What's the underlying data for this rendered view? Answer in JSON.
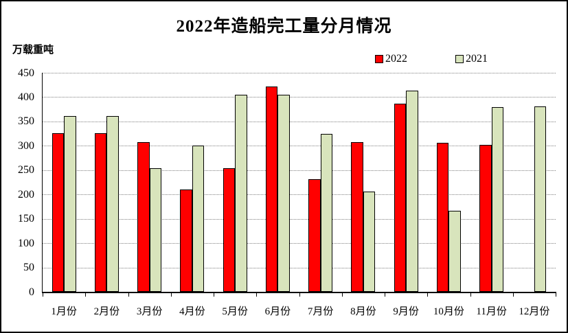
{
  "title": "2022年造船完工量分月情况",
  "y_axis_unit_label": "万载重吨",
  "legend": {
    "items": [
      {
        "label": "2022",
        "color": "#FF0000"
      },
      {
        "label": "2021",
        "color": "#D8E4BC"
      }
    ]
  },
  "colors": {
    "bar_border": "#000000",
    "gridline": "#7f7f7f",
    "axis": "#000000",
    "background": "#ffffff"
  },
  "chart_data": {
    "type": "bar",
    "title": "2022年造船完工量分月情况",
    "xlabel": "",
    "ylabel": "万载重吨",
    "categories": [
      "1月份",
      "2月份",
      "3月份",
      "4月份",
      "5月份",
      "6月份",
      "7月份",
      "8月份",
      "9月份",
      "10月份",
      "11月份",
      "12月份"
    ],
    "series": [
      {
        "name": "2022",
        "color": "#FF0000",
        "values": [
          326,
          326,
          307,
          210,
          254,
          422,
          232,
          307,
          386,
          306,
          302,
          null
        ]
      },
      {
        "name": "2021",
        "color": "#D8E4BC",
        "values": [
          361,
          361,
          254,
          301,
          405,
          405,
          325,
          206,
          414,
          166,
          380,
          381
        ]
      }
    ],
    "ylim": [
      0,
      450
    ],
    "ytick_step": 50,
    "yticks": [
      0,
      50,
      100,
      150,
      200,
      250,
      300,
      350,
      400,
      450
    ],
    "grid": "horizontal-dotted",
    "legend_position": "top-right"
  }
}
